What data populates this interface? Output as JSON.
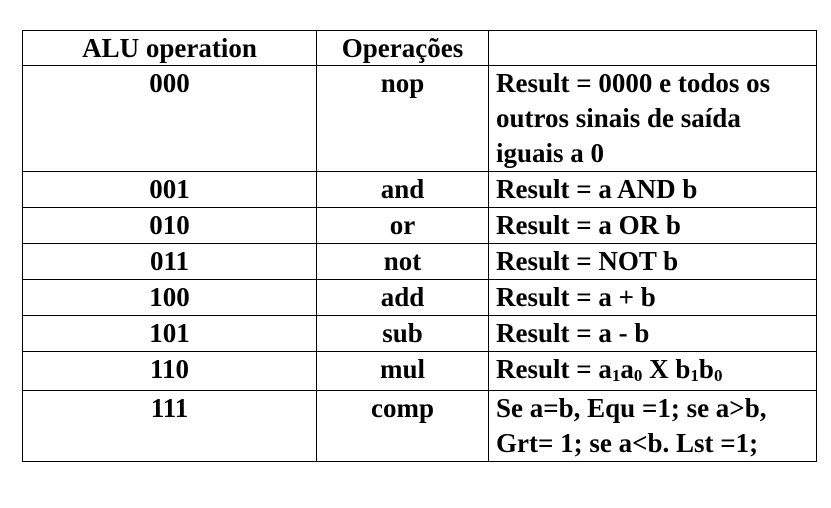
{
  "table": {
    "headers": [
      "ALU operation",
      "Operações",
      ""
    ],
    "rows": [
      {
        "code": "000",
        "op": "nop",
        "desc": "Result = 0000 e todos os outros sinais de saída iguais a 0"
      },
      {
        "code": "001",
        "op": "and",
        "desc": "Result = a AND b"
      },
      {
        "code": "010",
        "op": "or",
        "desc": "Result = a OR b"
      },
      {
        "code": "011",
        "op": "not",
        "desc": "Result = NOT b"
      },
      {
        "code": "100",
        "op": "add",
        "desc": "Result = a + b"
      },
      {
        "code": "101",
        "op": "sub",
        "desc": "Result = a - b"
      },
      {
        "code": "110",
        "op": "mul",
        "desc_parts": {
          "prefix": "Result = a",
          "s1": "1",
          "m1": "a",
          "s0": "0",
          "mid": " X b",
          "s2": "1",
          "m2": "b",
          "s3": "0"
        }
      },
      {
        "code": "111",
        "op": "comp",
        "desc": "Se a=b, Equ =1; se a>b, Grt= 1; se a<b. Lst =1;"
      }
    ]
  }
}
